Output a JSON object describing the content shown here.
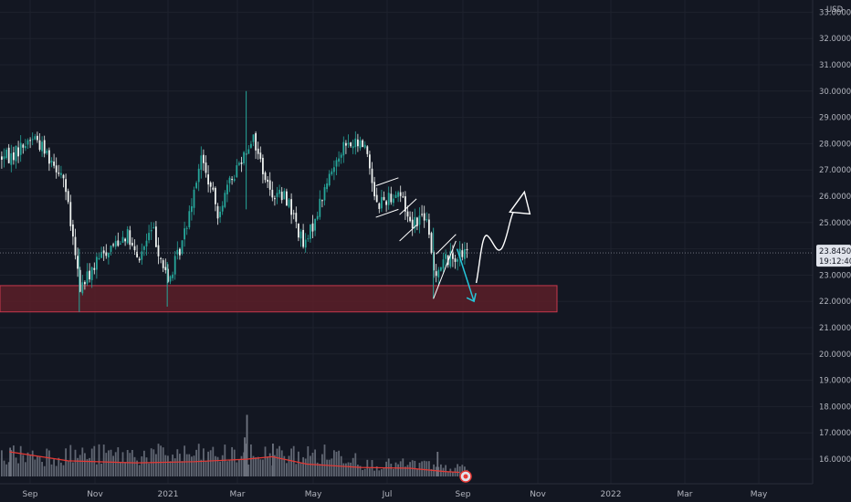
{
  "header": {
    "currency": "USD"
  },
  "price_axis": {
    "labels": [
      "16.00000",
      "17.00000",
      "18.00000",
      "19.00000",
      "20.00000",
      "21.00000",
      "22.00000",
      "23.00000",
      "24.00000",
      "25.00000",
      "26.00000",
      "27.00000",
      "28.00000",
      "29.00000",
      "30.00000",
      "31.00000",
      "32.00000",
      "33.00000"
    ],
    "current_price": "23.84500",
    "countdown": "19:12:40"
  },
  "time_axis": {
    "labels": [
      "Sep",
      "Nov",
      "2021",
      "Mar",
      "May",
      "Jul",
      "Sep",
      "Nov",
      "2022",
      "Mar",
      "May"
    ]
  },
  "colors": {
    "background": "#131722",
    "up": "#26a69a",
    "down": "#eef2f0",
    "zone_fill": "#5c1e28",
    "zone_border": "#c7394d",
    "volume": "#6f7480",
    "volume_ma": "#e53935",
    "drawing": "#ffffff",
    "arrow": "#26c6da",
    "badge": "#e0e3eb"
  },
  "chart_data": {
    "type": "candlestick",
    "price_range": [
      15.0,
      33.2
    ],
    "support_zone": [
      21.6,
      22.6
    ],
    "current_price": 23.845,
    "path": [
      {
        "date": "2020-07-25",
        "price": 27.5
      },
      {
        "date": "2020-08-15",
        "price": 28.3
      },
      {
        "date": "2020-09-10",
        "price": 26.8
      },
      {
        "date": "2020-09-25",
        "price": 22.5
      },
      {
        "date": "2020-10-15",
        "price": 23.8
      },
      {
        "date": "2020-11-05",
        "price": 24.6
      },
      {
        "date": "2020-11-15",
        "price": 23.5
      },
      {
        "date": "2020-11-28",
        "price": 24.8
      },
      {
        "date": "2020-12-12",
        "price": 22.7
      },
      {
        "date": "2020-12-25",
        "price": 24.3
      },
      {
        "date": "2021-01-10",
        "price": 27.5
      },
      {
        "date": "2021-01-25",
        "price": 25.4
      },
      {
        "date": "2021-02-12",
        "price": 27.2
      },
      {
        "date": "2021-02-25",
        "price": 28.3
      },
      {
        "date": "2021-03-12",
        "price": 26.2
      },
      {
        "date": "2021-03-28",
        "price": 25.9
      },
      {
        "date": "2021-04-12",
        "price": 24.0
      },
      {
        "date": "2021-05-01",
        "price": 26.4
      },
      {
        "date": "2021-05-15",
        "price": 27.9
      },
      {
        "date": "2021-06-05",
        "price": 28.0
      },
      {
        "date": "2021-06-15",
        "price": 25.7
      },
      {
        "date": "2021-07-05",
        "price": 26.2
      },
      {
        "date": "2021-07-15",
        "price": 25.0
      },
      {
        "date": "2021-07-28",
        "price": 25.3
      },
      {
        "date": "2021-08-05",
        "price": 23.1
      },
      {
        "date": "2021-08-15",
        "price": 23.6
      },
      {
        "date": "2021-08-28",
        "price": 23.8
      }
    ],
    "volume": {
      "range": [
        0,
        100
      ],
      "spikes": [
        {
          "date": "2020-07-25",
          "value": 70
        },
        {
          "date": "2021-02-20",
          "value": 150
        },
        {
          "date": "2021-02-18",
          "value": 95
        },
        {
          "date": "2021-03-15",
          "value": 80
        },
        {
          "date": "2021-08-08",
          "value": 60
        }
      ],
      "ma_points": [
        {
          "date": "2020-07-25",
          "value": 60
        },
        {
          "date": "2020-09-15",
          "value": 38
        },
        {
          "date": "2020-11-15",
          "value": 33
        },
        {
          "date": "2021-01-05",
          "value": 36
        },
        {
          "date": "2021-02-20",
          "value": 42
        },
        {
          "date": "2021-03-15",
          "value": 48
        },
        {
          "date": "2021-04-15",
          "value": 30
        },
        {
          "date": "2021-06-01",
          "value": 22
        },
        {
          "date": "2021-07-15",
          "value": 20
        },
        {
          "date": "2021-08-15",
          "value": 12
        },
        {
          "date": "2021-08-28",
          "value": 10
        }
      ]
    },
    "drawings": [
      {
        "type": "channel",
        "points": [
          {
            "date": "2021-06-15",
            "price": 26.4
          },
          {
            "date": "2021-07-05",
            "price": 26.7
          }
        ],
        "offset": -1.2
      },
      {
        "type": "channel",
        "points": [
          {
            "date": "2021-07-06",
            "price": 25.3
          },
          {
            "date": "2021-07-21",
            "price": 25.9
          }
        ],
        "offset": -1.0
      },
      {
        "type": "channel",
        "points": [
          {
            "date": "2021-08-05",
            "price": 22.1
          },
          {
            "date": "2021-08-25",
            "price": 24.3
          }
        ],
        "offset": 0
      },
      {
        "type": "projection_down",
        "from": {
          "date": "2021-08-26",
          "price": 24.0
        },
        "to": {
          "date": "2021-09-10",
          "price": 22.0
        }
      },
      {
        "type": "projection_up",
        "from": {
          "date": "2021-09-12",
          "price": 22.7
        },
        "to": {
          "date": "2021-10-15",
          "price": 25.4
        }
      }
    ]
  }
}
